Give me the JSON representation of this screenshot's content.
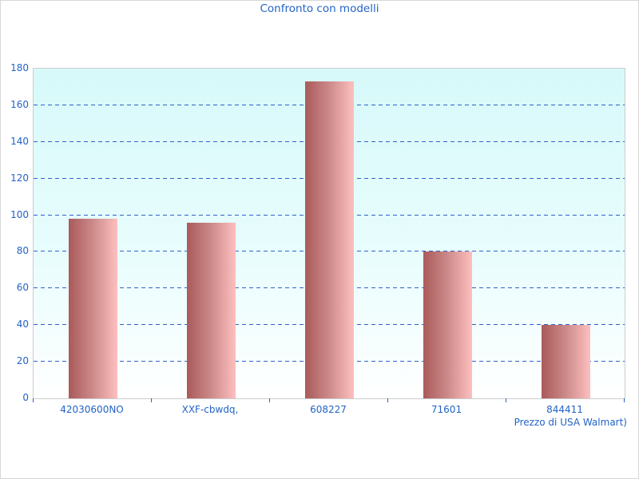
{
  "page": {
    "background": "#ffffff",
    "border_color": "#d8d8d8"
  },
  "chart_data": {
    "type": "bar",
    "title": "Confronto con modelli",
    "categories": [
      "42030600NO",
      "XXF-cbwdq,",
      "608227",
      "71601",
      "844411"
    ],
    "values": [
      98,
      96,
      173,
      80,
      40
    ],
    "xlabel": "Prezzo di USA Walmart)",
    "ylabel": "",
    "ylim": [
      0,
      180
    ],
    "ytick_step": 20,
    "grid": "horizontal-dashed",
    "legend": "none",
    "colors": {
      "text": "#2363c6",
      "gridline": "#3060c8",
      "tick": "#3060c8",
      "plot_border": "#cccccc",
      "plot_bg_top": "#d7f9fa",
      "plot_bg_bottom": "#ffffff",
      "bar_gradient_left": "#aa5a5a",
      "bar_gradient_right": "#fdbfbf"
    }
  }
}
